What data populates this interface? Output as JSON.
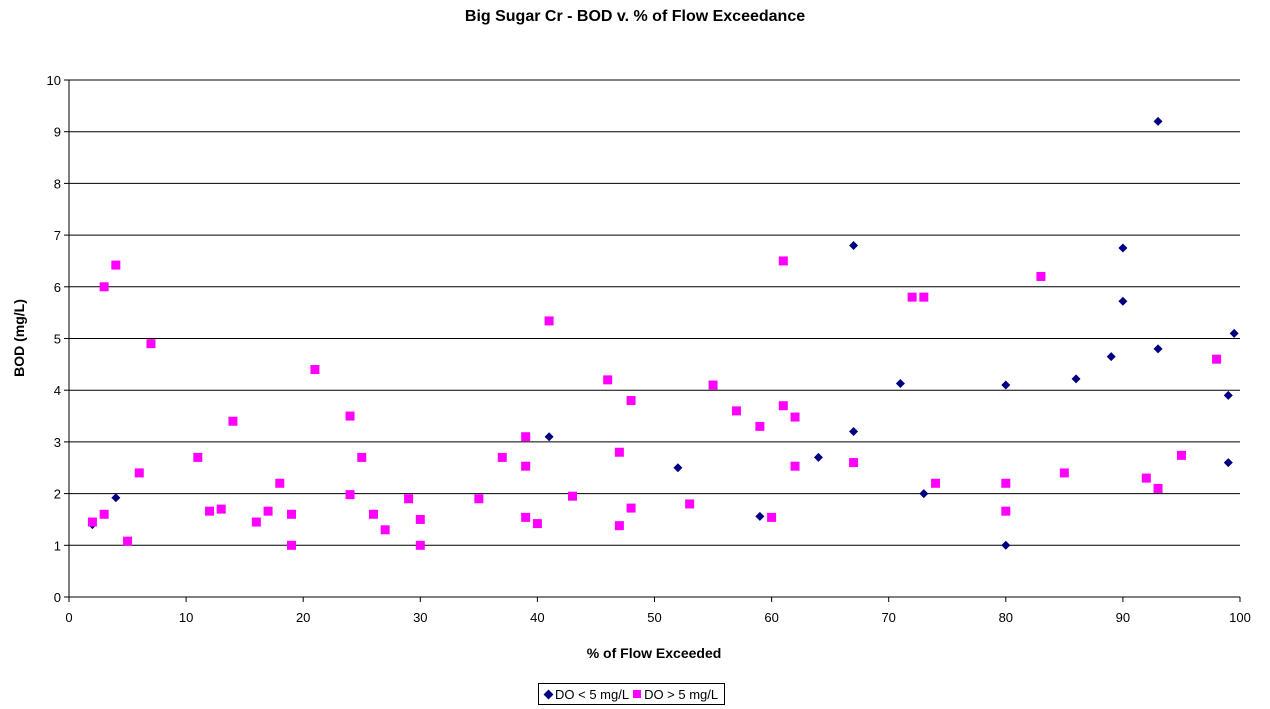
{
  "chart_data": {
    "type": "scatter",
    "title": "Big Sugar Cr - BOD v. % of Flow Exceedance",
    "xlabel": "% of Flow Exceeded",
    "ylabel": "BOD (mg/L)",
    "xlim": [
      0,
      100
    ],
    "ylim": [
      0,
      10
    ],
    "xticks": [
      "0",
      "10",
      "20",
      "30",
      "40",
      "50",
      "60",
      "70",
      "80",
      "90",
      "100"
    ],
    "yticks": [
      "0",
      "1",
      "2",
      "3",
      "4",
      "5",
      "6",
      "7",
      "8",
      "9",
      "10"
    ],
    "grid": "horizontal",
    "legend_position": "bottom",
    "series": [
      {
        "name": "DO < 5 mg/L",
        "marker": "diamond",
        "color": "#000080",
        "points": [
          [
            2,
            1.4
          ],
          [
            4,
            1.92
          ],
          [
            41,
            3.1
          ],
          [
            52,
            2.5
          ],
          [
            59,
            1.56
          ],
          [
            64,
            2.7
          ],
          [
            67,
            6.8
          ],
          [
            67,
            3.2
          ],
          [
            71,
            4.13
          ],
          [
            73,
            2.0
          ],
          [
            80,
            4.1
          ],
          [
            80,
            1.0
          ],
          [
            86,
            4.22
          ],
          [
            89,
            4.65
          ],
          [
            90,
            6.75
          ],
          [
            90,
            5.72
          ],
          [
            93,
            9.2
          ],
          [
            93,
            4.8
          ],
          [
            99,
            3.9
          ],
          [
            99,
            2.6
          ],
          [
            99.5,
            5.1
          ]
        ]
      },
      {
        "name": "DO > 5 mg/L",
        "marker": "square",
        "color": "#FF00FF",
        "points": [
          [
            2,
            1.45
          ],
          [
            3,
            6.0
          ],
          [
            3,
            1.6
          ],
          [
            4,
            6.42
          ],
          [
            5,
            1.08
          ],
          [
            6,
            2.4
          ],
          [
            7,
            4.9
          ],
          [
            11,
            2.7
          ],
          [
            12,
            1.66
          ],
          [
            13,
            1.7
          ],
          [
            14,
            3.4
          ],
          [
            16,
            1.45
          ],
          [
            17,
            1.66
          ],
          [
            18,
            2.2
          ],
          [
            19,
            1.6
          ],
          [
            19,
            1.0
          ],
          [
            21,
            4.4
          ],
          [
            24,
            3.5
          ],
          [
            24,
            1.98
          ],
          [
            25,
            2.7
          ],
          [
            26,
            1.6
          ],
          [
            27,
            1.3
          ],
          [
            29,
            1.9
          ],
          [
            30,
            1.5
          ],
          [
            30,
            1.0
          ],
          [
            35,
            1.9
          ],
          [
            37,
            2.7
          ],
          [
            39,
            3.1
          ],
          [
            39,
            2.53
          ],
          [
            39,
            1.54
          ],
          [
            40,
            1.42
          ],
          [
            41,
            5.34
          ],
          [
            43,
            1.95
          ],
          [
            46,
            4.2
          ],
          [
            47,
            2.8
          ],
          [
            47,
            1.38
          ],
          [
            48,
            3.8
          ],
          [
            48,
            1.72
          ],
          [
            53,
            1.8
          ],
          [
            55,
            4.1
          ],
          [
            57,
            3.6
          ],
          [
            59,
            3.3
          ],
          [
            60,
            1.54
          ],
          [
            61,
            6.5
          ],
          [
            61,
            3.7
          ],
          [
            62,
            3.48
          ],
          [
            62,
            2.53
          ],
          [
            67,
            2.6
          ],
          [
            72,
            5.8
          ],
          [
            73,
            5.8
          ],
          [
            74,
            2.2
          ],
          [
            80,
            2.2
          ],
          [
            80,
            1.66
          ],
          [
            83,
            6.2
          ],
          [
            85,
            2.4
          ],
          [
            92,
            2.3
          ],
          [
            93,
            2.1
          ],
          [
            95,
            2.74
          ],
          [
            98,
            4.6
          ]
        ]
      }
    ]
  }
}
